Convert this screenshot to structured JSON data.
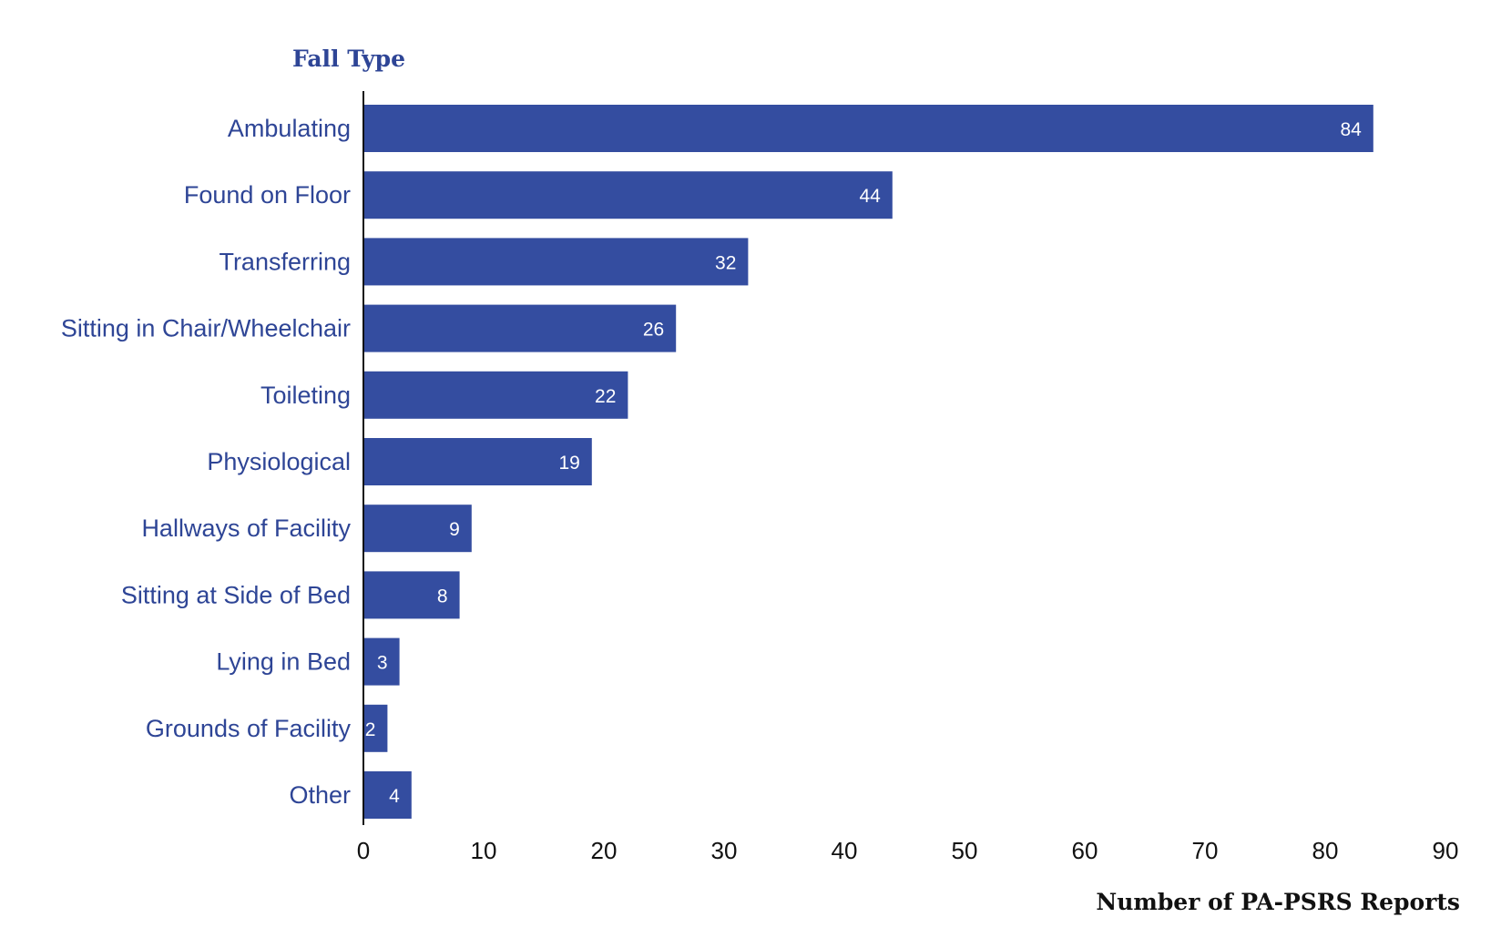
{
  "chart_data": {
    "type": "bar",
    "orientation": "horizontal",
    "ylabel": "Fall Type",
    "xlabel": "Number of PA-PSRS Reports",
    "categories": [
      "Ambulating",
      "Found on Floor",
      "Transferring",
      "Sitting in Chair/Wheelchair",
      "Toileting",
      "Physiological",
      "Hallways of Facility",
      "Sitting at Side of Bed",
      "Lying in Bed",
      "Grounds of Facility",
      "Other"
    ],
    "values": [
      84,
      44,
      32,
      26,
      22,
      19,
      9,
      8,
      3,
      2,
      4
    ],
    "value_labels": [
      "84",
      "44",
      "32",
      "26",
      "22",
      "19",
      "9",
      "8",
      "3",
      "2",
      "4"
    ],
    "xlim": [
      0,
      90
    ],
    "xticks": [
      0,
      10,
      20,
      30,
      40,
      50,
      60,
      70,
      80,
      90
    ],
    "xtick_labels": [
      "0",
      "10",
      "20",
      "30",
      "40",
      "50",
      "60",
      "70",
      "80",
      "90"
    ],
    "grid": false,
    "legend": "none",
    "bar_color": "#344da0",
    "label_color": "#2e4596",
    "value_label_color": "#ffffff"
  }
}
